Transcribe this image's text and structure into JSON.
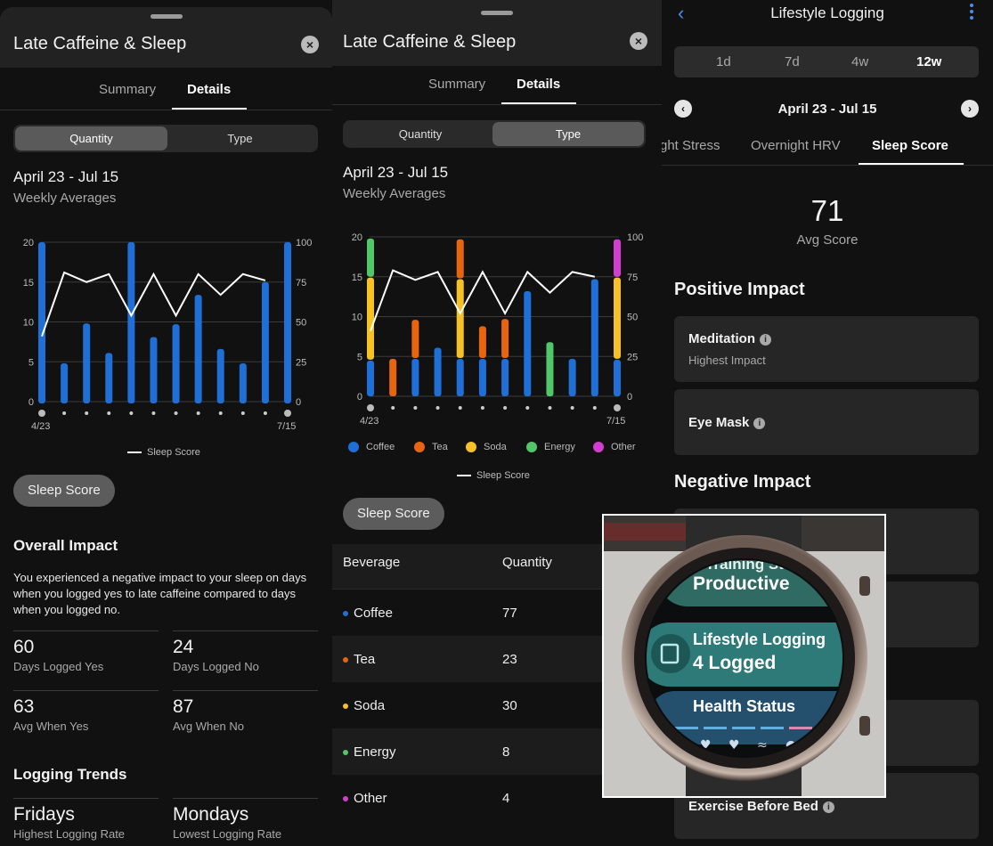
{
  "panel1": {
    "sheet_title": "Late Caffeine & Sleep",
    "close_icon": "×",
    "tabs": [
      {
        "label": "Summary"
      },
      {
        "label": "Details",
        "active": true
      }
    ],
    "toggle": [
      {
        "label": "Quantity",
        "active": true
      },
      {
        "label": "Type"
      }
    ],
    "range_title": "April 23 - Jul 15",
    "range_sub": "Weekly Averages",
    "legend_label": "Sleep Score",
    "pill_label": "Sleep Score",
    "overall_heading": "Overall Impact",
    "overall_text": "You experienced a negative impact to your sleep on days when you logged yes to late caffeine compared to days when you logged no.",
    "stats": [
      {
        "value": "60",
        "label": "Days Logged Yes"
      },
      {
        "value": "24",
        "label": "Days Logged No"
      },
      {
        "value": "63",
        "label": "Avg When Yes"
      },
      {
        "value": "87",
        "label": "Avg When No"
      }
    ],
    "trends_heading": "Logging Trends",
    "trends": [
      {
        "value": "Fridays",
        "label": "Highest Logging Rate"
      },
      {
        "value": "Mondays",
        "label": "Lowest Logging Rate"
      }
    ]
  },
  "panel2": {
    "sheet_title": "Late Caffeine & Sleep",
    "close_icon": "×",
    "tabs": [
      {
        "label": "Summary"
      },
      {
        "label": "Details",
        "active": true
      }
    ],
    "toggle": [
      {
        "label": "Quantity"
      },
      {
        "label": "Type",
        "active": true
      }
    ],
    "range_title": "April 23 - Jul 15",
    "range_sub": "Weekly Averages",
    "legend_label": "Sleep Score",
    "pill_label": "Sleep Score",
    "table": {
      "headers": [
        "Beverage",
        "Quantity"
      ],
      "rows": [
        {
          "name": "Coffee",
          "qty": "77",
          "color": "#1f6fd6"
        },
        {
          "name": "Tea",
          "qty": "23",
          "color": "#e8650f"
        },
        {
          "name": "Soda",
          "qty": "30",
          "color": "#f5c127"
        },
        {
          "name": "Energy",
          "qty": "8",
          "color": "#52c76a"
        },
        {
          "name": "Other",
          "qty": "4",
          "color": "#d23fd0"
        }
      ]
    }
  },
  "panel3": {
    "nav_title": "Lifestyle Logging",
    "back_icon": "‹",
    "range_options": [
      {
        "label": "1d"
      },
      {
        "label": "7d"
      },
      {
        "label": "4w"
      },
      {
        "label": "12w",
        "active": true
      }
    ],
    "date_range": "April 23 - Jul 15",
    "prev_icon": "‹",
    "next_icon": "›",
    "metric_tabs": [
      {
        "label": "ght Stress"
      },
      {
        "label": "Overnight HRV"
      },
      {
        "label": "Sleep Score",
        "active": true
      }
    ],
    "avg_value": "71",
    "avg_label": "Avg Score",
    "positive_heading": "Positive Impact",
    "positive_cards": [
      {
        "title": "Meditation",
        "subtitle": "Highest Impact"
      },
      {
        "title": "Eye Mask",
        "subtitle": ""
      }
    ],
    "negative_heading": "Negative Impact",
    "negative_cards": [
      {
        "title": "Exercise Before Bed"
      }
    ]
  },
  "watch": {
    "items": [
      {
        "title": "Training Status",
        "value": "Productive"
      },
      {
        "title": "Lifestyle Logging",
        "value": "4 Logged"
      },
      {
        "title": "Health Status",
        "value": ""
      }
    ]
  },
  "chart_data": [
    {
      "type": "bar",
      "title": "",
      "x_labels": [
        "4/23",
        "7/15"
      ],
      "x_count": 12,
      "y_left": {
        "min": 0,
        "max": 20,
        "ticks": [
          0,
          5,
          10,
          15,
          20
        ]
      },
      "y_right": {
        "min": 0,
        "max": 100,
        "ticks": [
          0,
          25,
          50,
          75,
          100
        ]
      },
      "series": [
        {
          "kind": "bar",
          "color": "#1f6fd6",
          "values": [
            20,
            4.8,
            9.8,
            6.1,
            20,
            8.1,
            9.7,
            13.4,
            6.6,
            4.8,
            15,
            20
          ]
        },
        {
          "kind": "line",
          "name": "Sleep Score",
          "axis": "right",
          "color": "#ffffff",
          "values": [
            41,
            81,
            75,
            80,
            54,
            80,
            54,
            80,
            67,
            80,
            76
          ]
        }
      ]
    },
    {
      "type": "stacked-bar",
      "title": "",
      "x_labels": [
        "4/23",
        "7/15"
      ],
      "x_count": 12,
      "y_left": {
        "min": 0,
        "max": 20,
        "ticks": [
          0,
          5,
          10,
          15,
          20
        ]
      },
      "y_right": {
        "min": 0,
        "max": 100,
        "ticks": [
          0,
          25,
          50,
          75,
          100
        ]
      },
      "legend": [
        {
          "name": "Coffee",
          "color": "#1f6fd6"
        },
        {
          "name": "Tea",
          "color": "#e8650f"
        },
        {
          "name": "Soda",
          "color": "#f5c127"
        },
        {
          "name": "Energy",
          "color": "#52c76a"
        },
        {
          "name": "Other",
          "color": "#d23fd0"
        }
      ],
      "stacks": [
        [
          {
            "s": "Coffee",
            "v": 4.6
          },
          {
            "s": "Soda",
            "v": 10.4
          },
          {
            "s": "Energy",
            "v": 4.9
          }
        ],
        [
          {
            "s": "Tea",
            "v": 4.8
          }
        ],
        [
          {
            "s": "Coffee",
            "v": 4.8
          },
          {
            "s": "Tea",
            "v": 4.9
          }
        ],
        [
          {
            "s": "Coffee",
            "v": 6.2
          }
        ],
        [
          {
            "s": "Coffee",
            "v": 4.8
          },
          {
            "s": "Soda",
            "v": 10
          },
          {
            "s": "Tea",
            "v": 5.0
          }
        ],
        [
          {
            "s": "Coffee",
            "v": 4.8
          },
          {
            "s": "Tea",
            "v": 4.1
          }
        ],
        [
          {
            "s": "Coffee",
            "v": 4.8
          },
          {
            "s": "Tea",
            "v": 5.0
          }
        ],
        [
          {
            "s": "Coffee",
            "v": 13.3
          }
        ],
        [
          {
            "s": "Energy",
            "v": 6.9
          }
        ],
        [
          {
            "s": "Coffee",
            "v": 4.8
          }
        ],
        [
          {
            "s": "Coffee",
            "v": 14.8
          }
        ],
        [
          {
            "s": "Coffee",
            "v": 4.7
          },
          {
            "s": "Soda",
            "v": 10.3
          },
          {
            "s": "Other",
            "v": 4.8
          }
        ]
      ],
      "line": {
        "name": "Sleep Score",
        "axis": "right",
        "color": "#ffffff",
        "values": [
          41,
          79,
          73,
          78,
          52,
          78,
          52,
          78,
          65,
          78,
          75
        ]
      }
    }
  ]
}
